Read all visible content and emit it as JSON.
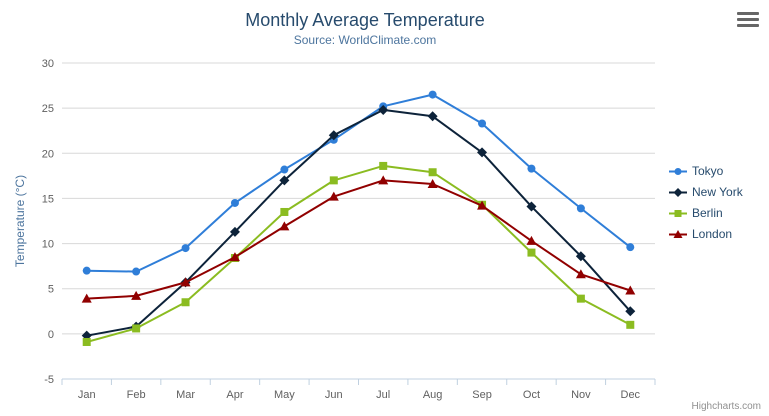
{
  "credits": {
    "label": "Highcharts.com"
  },
  "icons": {
    "menu": "hamburger-icon"
  },
  "chart_data": {
    "type": "line",
    "title": "Monthly Average Temperature",
    "subtitle": "Source: WorldClimate.com",
    "xlabel": "",
    "ylabel": "Temperature (°C)",
    "ylim": [
      -5,
      30
    ],
    "ytick": 5,
    "grid": true,
    "legend_position": "right",
    "categories": [
      "Jan",
      "Feb",
      "Mar",
      "Apr",
      "May",
      "Jun",
      "Jul",
      "Aug",
      "Sep",
      "Oct",
      "Nov",
      "Dec"
    ],
    "series": [
      {
        "name": "Tokyo",
        "color": "#2f7ed8",
        "marker": "circle",
        "values": [
          7.0,
          6.9,
          9.5,
          14.5,
          18.2,
          21.5,
          25.2,
          26.5,
          23.3,
          18.3,
          13.9,
          9.6
        ]
      },
      {
        "name": "New York",
        "color": "#0d233a",
        "marker": "diamond",
        "values": [
          -0.2,
          0.8,
          5.7,
          11.3,
          17.0,
          22.0,
          24.8,
          24.1,
          20.1,
          14.1,
          8.6,
          2.5
        ]
      },
      {
        "name": "Berlin",
        "color": "#8bbc21",
        "marker": "square",
        "values": [
          -0.9,
          0.6,
          3.5,
          8.4,
          13.5,
          17.0,
          18.6,
          17.9,
          14.3,
          9.0,
          3.9,
          1.0
        ]
      },
      {
        "name": "London",
        "color": "#910000",
        "marker": "triangle",
        "values": [
          3.9,
          4.2,
          5.7,
          8.5,
          11.9,
          15.2,
          17.0,
          16.6,
          14.2,
          10.3,
          6.6,
          4.8
        ]
      }
    ]
  }
}
